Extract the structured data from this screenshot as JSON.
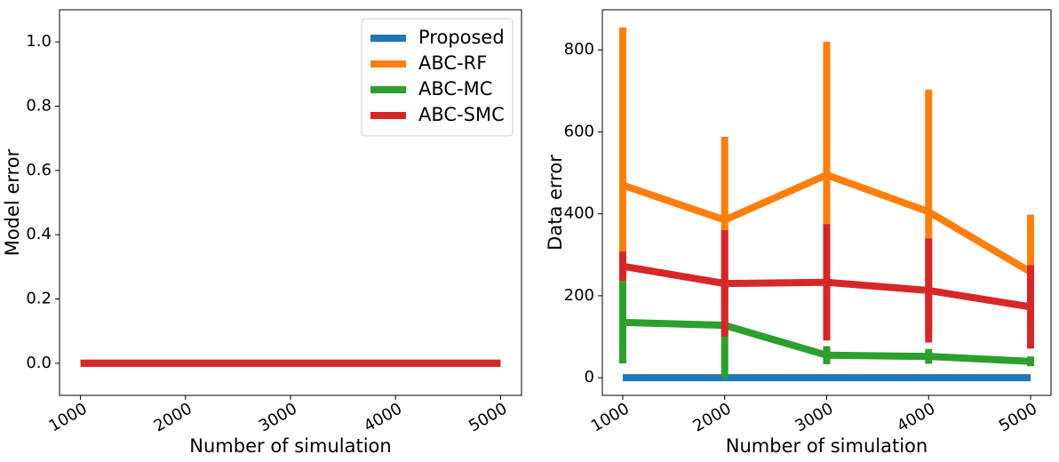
{
  "chart_data": [
    {
      "type": "line",
      "xlabel": "Number of simulation",
      "ylabel": "Model error",
      "x": [
        1000,
        2000,
        3000,
        4000,
        5000
      ],
      "xlim": [
        800,
        5200
      ],
      "xticks": [
        1000,
        2000,
        3000,
        4000,
        5000
      ],
      "ylim": [
        -0.1,
        1.1
      ],
      "yticks": [
        {
          "value": 0,
          "label": "0.0"
        },
        {
          "value": 0.2,
          "label": "0.2"
        },
        {
          "value": 0.4,
          "label": "0.4"
        },
        {
          "value": 0.6,
          "label": "0.6"
        },
        {
          "value": 0.8,
          "label": "0.8"
        },
        {
          "value": 1,
          "label": "1.0"
        }
      ],
      "legend": "upper right",
      "series": [
        {
          "name": "Proposed",
          "color": "#1f77b4",
          "values": [
            0,
            0,
            0,
            0,
            0
          ]
        },
        {
          "name": "ABC-RF",
          "color": "#ff7f0e",
          "values": [
            0,
            0,
            0,
            0,
            0
          ]
        },
        {
          "name": "ABC-MC",
          "color": "#2ca02c",
          "values": [
            0,
            0,
            0,
            0,
            0
          ]
        },
        {
          "name": "ABC-SMC",
          "color": "#d62728",
          "values": [
            0,
            0,
            0,
            0,
            0
          ]
        }
      ]
    },
    {
      "type": "line",
      "xlabel": "Number of simulation",
      "ylabel": "Data error",
      "x": [
        1000,
        2000,
        3000,
        4000,
        5000
      ],
      "xlim": [
        800,
        5200
      ],
      "xticks": [
        1000,
        2000,
        3000,
        4000,
        5000
      ],
      "ylim": [
        -43,
        898
      ],
      "yticks": [
        0,
        200,
        400,
        600,
        800
      ],
      "series": [
        {
          "color": "#1f77b4",
          "values": [
            0,
            0,
            0,
            0,
            0
          ],
          "errors": [
            0,
            0,
            0,
            0,
            0
          ]
        },
        {
          "color": "#ff7f0e",
          "values": [
            470,
            385,
            495,
            405,
            258
          ],
          "errors": [
            385,
            203,
            325,
            298,
            140
          ]
        },
        {
          "color": "#2ca02c",
          "values": [
            135,
            128,
            55,
            52,
            40
          ],
          "errors": [
            100,
            128,
            22,
            18,
            12
          ]
        },
        {
          "color": "#d62728",
          "values": [
            272,
            230,
            233,
            213,
            173
          ],
          "errors": [
            36,
            130,
            142,
            127,
            102
          ]
        }
      ]
    }
  ]
}
